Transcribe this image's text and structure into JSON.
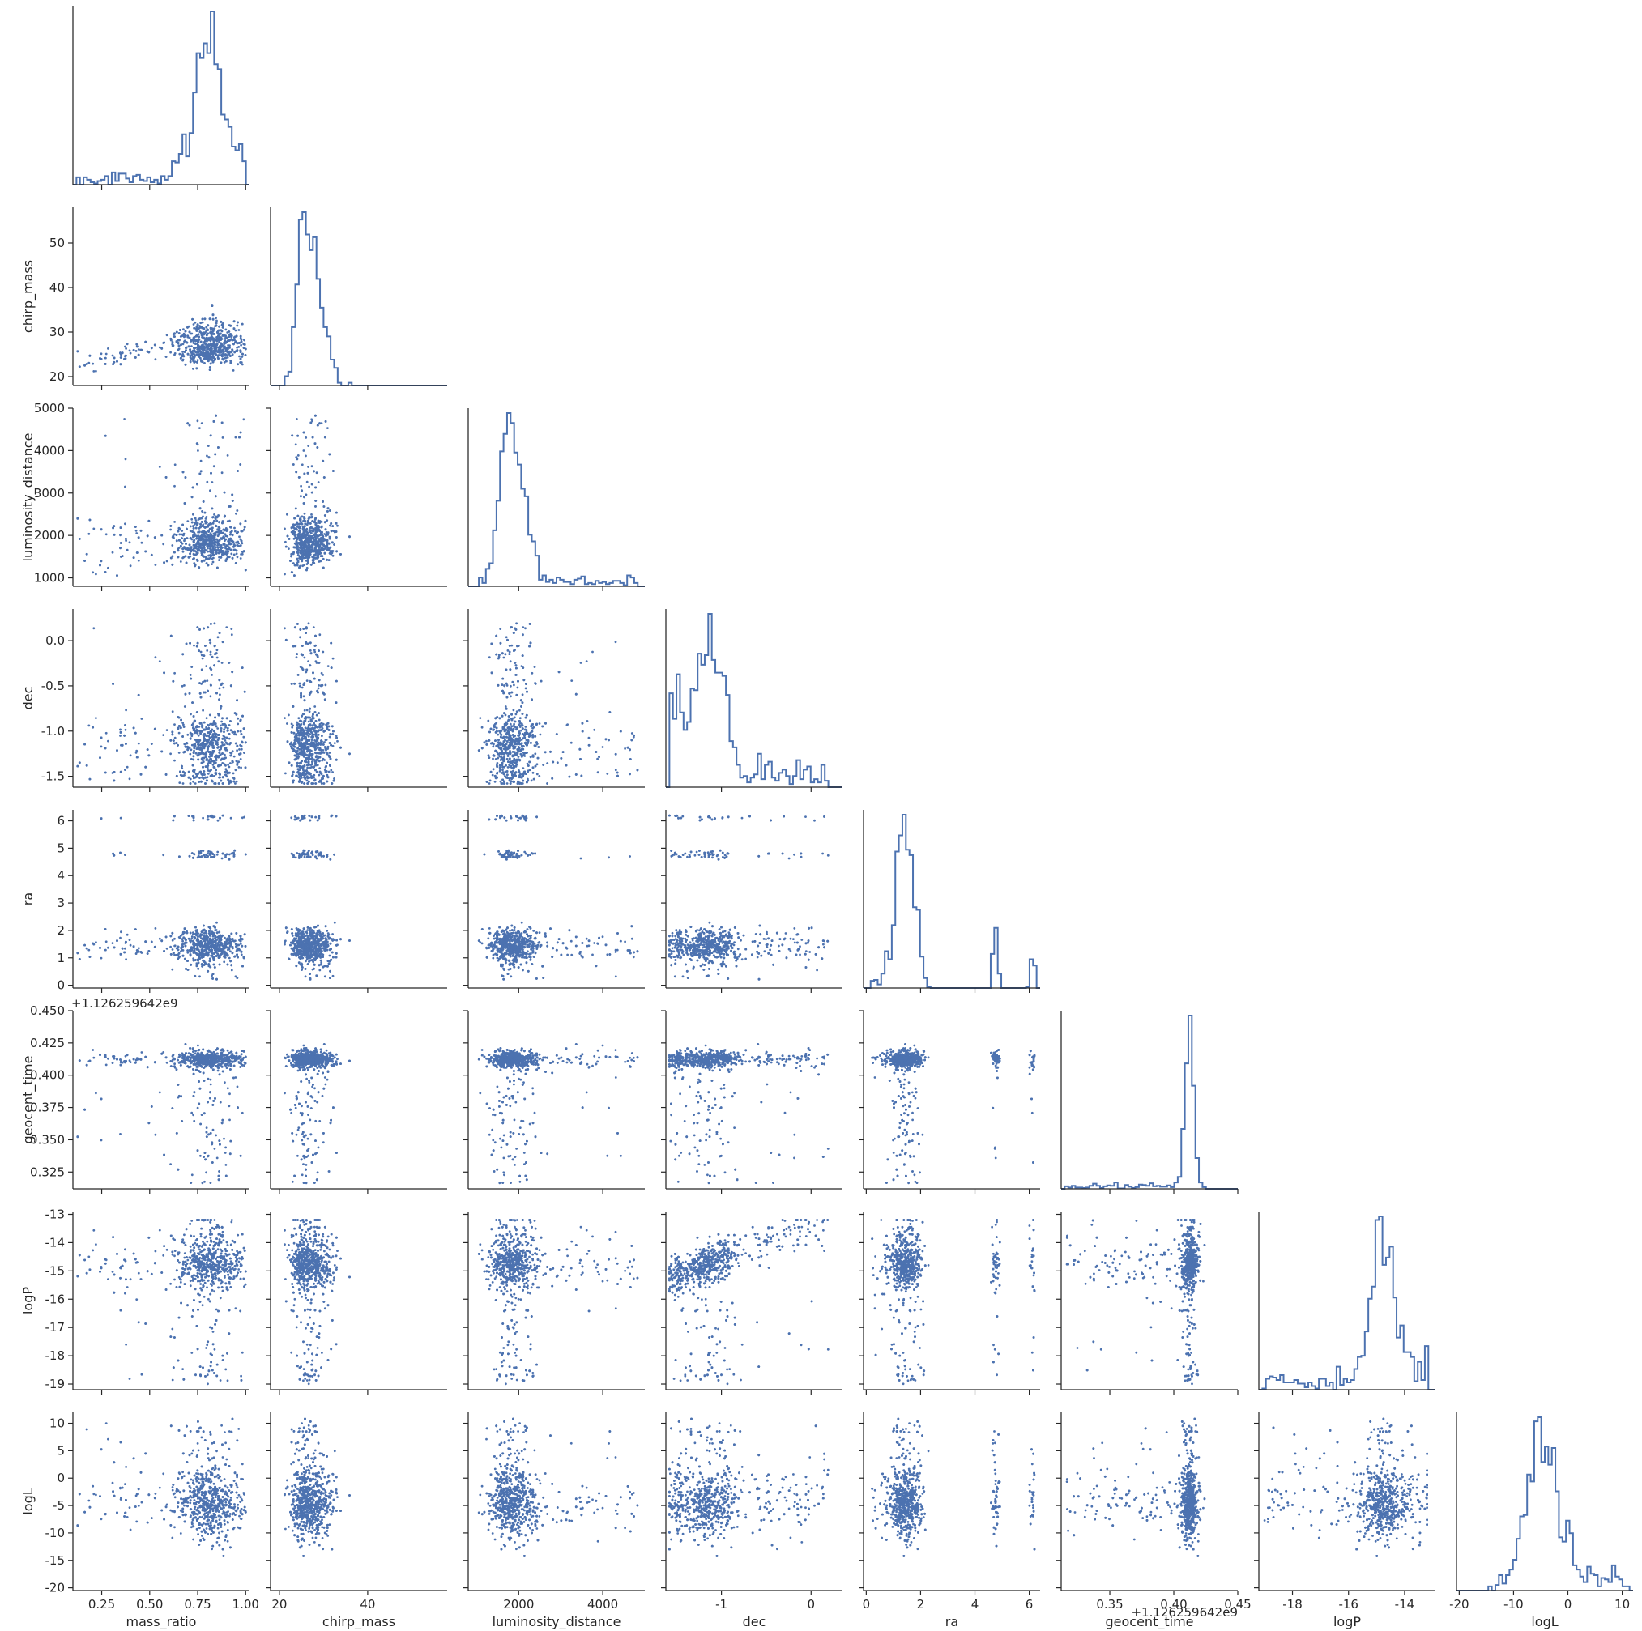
{
  "chart_data": {
    "type": "scatter",
    "layout": "corner-pairplot",
    "title": "",
    "colors": {
      "marker": "#4c72b0",
      "axis": "#262626",
      "background": "#ffffff"
    },
    "grid": false,
    "variables": [
      {
        "name": "mass_ratio",
        "label": "mass_ratio",
        "range": [
          0.1,
          1.02
        ],
        "ticks": [
          0.25,
          0.5,
          0.75,
          1.0
        ],
        "tick_labels": [
          "0.25",
          "0.50",
          "0.75",
          "1.00"
        ]
      },
      {
        "name": "chirp_mass",
        "label": "chirp_mass",
        "range": [
          18,
          58
        ],
        "ticks": [
          20,
          30,
          40,
          50
        ],
        "tick_labels": [
          "20",
          "30",
          "40",
          "50"
        ],
        "x_ticks": [
          20,
          40
        ],
        "x_tick_labels": [
          "20",
          "40"
        ]
      },
      {
        "name": "luminosity_distance",
        "label": "luminosity_distance",
        "range": [
          800,
          5000
        ],
        "ticks": [
          1000,
          2000,
          3000,
          4000,
          5000
        ],
        "tick_labels": [
          "1000",
          "2000",
          "3000",
          "4000",
          "5000"
        ],
        "x_ticks": [
          2000,
          4000
        ],
        "x_tick_labels": [
          "2000",
          "4000"
        ]
      },
      {
        "name": "dec",
        "label": "dec",
        "range": [
          -1.62,
          0.35
        ],
        "ticks": [
          -1.5,
          -1.0,
          -0.5,
          0.0
        ],
        "tick_labels": [
          "-1.5",
          "-1.0",
          "-0.5",
          "0.0"
        ],
        "x_ticks": [
          -1,
          0
        ],
        "x_tick_labels": [
          "-1",
          "0"
        ]
      },
      {
        "name": "ra",
        "label": "ra",
        "range": [
          -0.1,
          6.4
        ],
        "ticks": [
          0,
          1,
          2,
          3,
          4,
          5,
          6
        ],
        "tick_labels": [
          "0",
          "1",
          "2",
          "3",
          "4",
          "5",
          "6"
        ],
        "x_ticks": [
          0,
          2,
          4,
          6
        ],
        "x_tick_labels": [
          "0",
          "2",
          "4",
          "6"
        ]
      },
      {
        "name": "geocent_time",
        "label": "geocent_time",
        "range": [
          0.312,
          0.45
        ],
        "ticks": [
          0.325,
          0.35,
          0.375,
          0.4,
          0.425,
          0.45
        ],
        "tick_labels": [
          "0.325",
          "0.350",
          "0.375",
          "0.400",
          "0.425",
          "0.450"
        ],
        "x_ticks": [
          0.35,
          0.4,
          0.45
        ],
        "x_tick_labels": [
          "0.35",
          "0.40",
          "0.45"
        ],
        "offset_label": "+1.126259642e9"
      },
      {
        "name": "logP",
        "label": "logP",
        "range": [
          -19.2,
          -12.9
        ],
        "ticks": [
          -19,
          -18,
          -17,
          -16,
          -15,
          -14,
          -13
        ],
        "tick_labels": [
          "-19",
          "-18",
          "-17",
          "-16",
          "-15",
          "-14",
          "-13"
        ],
        "x_ticks": [
          -18,
          -16,
          -14
        ],
        "x_tick_labels": [
          "-18",
          "-16",
          "-14"
        ]
      },
      {
        "name": "logL",
        "label": "logL",
        "range": [
          -20.5,
          12
        ],
        "ticks": [
          -20,
          -15,
          -10,
          -5,
          0,
          5,
          10
        ],
        "tick_labels": [
          "-20",
          "-15",
          "-10",
          "-5",
          "0",
          "5",
          "10"
        ],
        "x_ticks": [
          -20,
          -10,
          0,
          10
        ],
        "x_tick_labels": [
          "-20",
          "-10",
          "0",
          "10"
        ]
      }
    ],
    "marginal_modes": {
      "mass_ratio": [
        0.8
      ],
      "chirp_mass": [
        28
      ],
      "luminosity_distance": [
        1950
      ],
      "dec": [
        -1.15
      ],
      "ra": [
        1.45,
        4.8
      ],
      "geocent_time": [
        0.4125
      ],
      "logP": [
        -14.8
      ],
      "logL": [
        -4.5
      ]
    },
    "sample_count_per_panel": 1400
  }
}
